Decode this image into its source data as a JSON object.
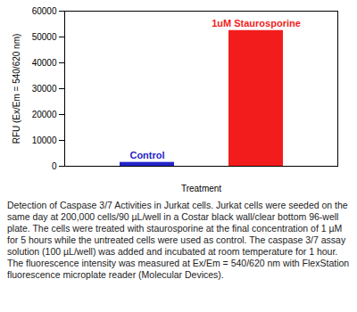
{
  "chart_data": {
    "type": "bar",
    "categories": [
      "Control",
      "1uM Staurosporine"
    ],
    "values": [
      1500,
      52500
    ],
    "colors": [
      "#2424c8",
      "#f21c1c"
    ],
    "xlabel": "Treatment",
    "ylabel": "RFU (Ex/Em = 540/620 nm)",
    "ylim": [
      0,
      60000
    ],
    "yticks": [
      0,
      10000,
      20000,
      30000,
      40000,
      50000,
      60000
    ],
    "tick_labels": "y",
    "grid": false,
    "caption": "Detection of Caspase 3/7 Activities in Jurkat cells. Jurkat cells were seeded on the same day at 200,000 cells/90 µL/well in a Costar black wall/clear bottom 96-well plate. The cells were treated with staurosporine at the final concentration of 1 µM for 5 hours while the untreated cells were used as control. The caspase 3/7 assay solution (100 µL/well) was added and incubated at room temperature for 1 hour. The fluorescence intensity was measured at Ex/Em = 540/620 nm with FlexStation fluorescence microplate reader (Molecular Devices)."
  }
}
